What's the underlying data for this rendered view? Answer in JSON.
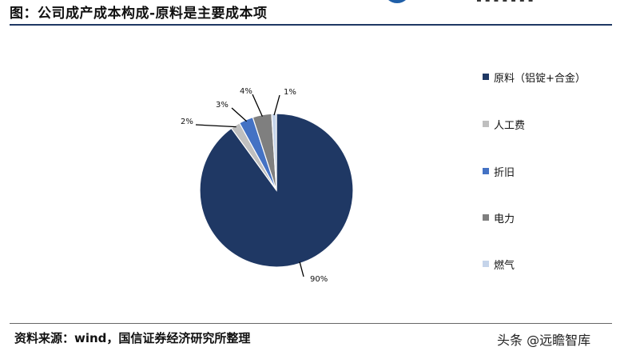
{
  "header": {
    "title": "图：公司成产成本构成-原料是主要成本项"
  },
  "chart_data": {
    "type": "pie",
    "categories": [
      "原料（铝锭+合金）",
      "人工费",
      "折旧",
      "电力",
      "燃气"
    ],
    "values": [
      90,
      2,
      3,
      4,
      1
    ],
    "data_labels": [
      "90%",
      "2%",
      "3%",
      "4%",
      "1%"
    ],
    "colors": [
      "#1f3864",
      "#bfbfbf",
      "#4472c4",
      "#7f7f7f",
      "#c5d4ea"
    ],
    "legend": "right",
    "start_angle_deg": 0,
    "direction": "clockwise"
  },
  "footer": {
    "source": "资料来源：wind，国信证券经济研究所整理",
    "watermark": "头条 @远瞻智库"
  }
}
